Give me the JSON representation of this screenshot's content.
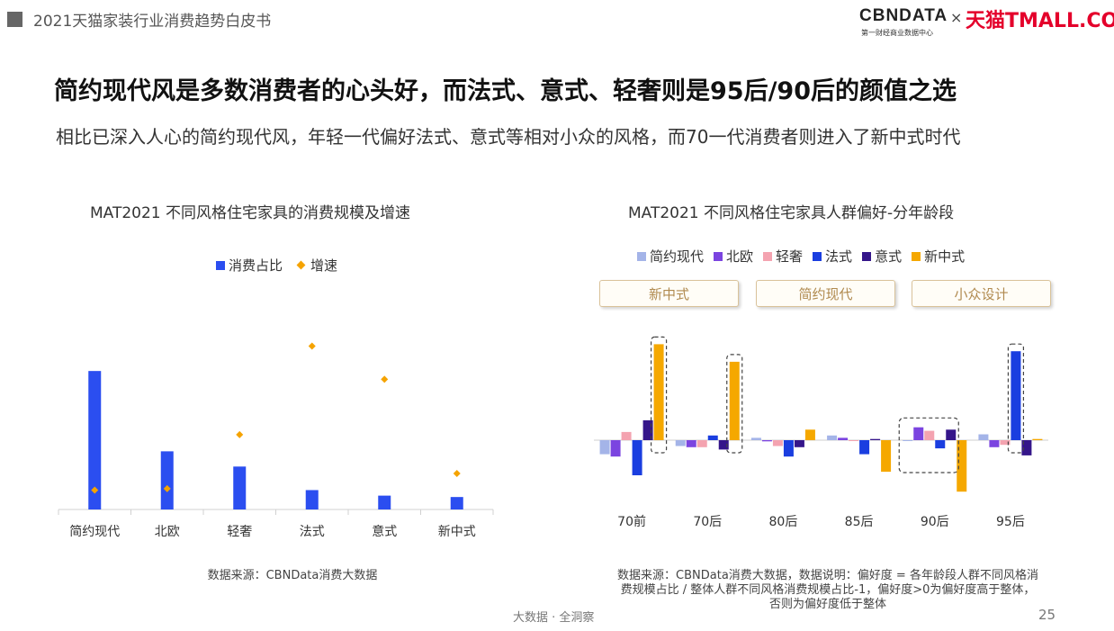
{
  "header": {
    "report_title": "2021天猫家装行业消费趋势白皮书",
    "cbn_logo": "CBNDATA",
    "cbn_tagline": "第一财经商业数据中心",
    "times_sign": "×",
    "tmall_logo": "天猫TMALL.COM"
  },
  "headline": "简约现代风是多数消费者的心头好，而法式、意式、轻奢则是95后/90后的颜值之选",
  "subline": "相比已深入人心的简约现代风，年轻一代偏好法式、意式等相对小众的风格，而70一代消费者则进入了新中式时代",
  "footer": {
    "center": "大数据 · 全洞察",
    "page": "25"
  },
  "colors": {
    "bar_blue": "#2b4ef0",
    "diamond_orange": "#f5a300",
    "series": [
      "#a4b4e8",
      "#7b44e0",
      "#f4a3b0",
      "#1a3ee0",
      "#35168a",
      "#f5a800"
    ]
  },
  "chart_data": [
    {
      "type": "bar",
      "title": "MAT2021 不同风格住宅家具的消费规模及增速",
      "categories": [
        "简约现代",
        "北欧",
        "轻奢",
        "法式",
        "意式",
        "新中式"
      ],
      "series": [
        {
          "name": "消费占比",
          "values": [
            100,
            42,
            31,
            14,
            10,
            9
          ]
        },
        {
          "name": "增速",
          "values": [
            14,
            15,
            54,
            118,
            94,
            26
          ]
        }
      ],
      "ylim": [
        0,
        130
      ],
      "legend_position": "top",
      "source": "数据来源：CBNData消费大数据"
    },
    {
      "type": "bar",
      "title": "MAT2021 不同风格住宅家具人群偏好-分年龄段",
      "categories": [
        "70前",
        "70后",
        "80后",
        "85后",
        "90后",
        "95后"
      ],
      "series": [
        {
          "name": "简约现代",
          "values": [
            -0.12,
            -0.05,
            0.02,
            0.04,
            0.0,
            0.05
          ]
        },
        {
          "name": "北欧",
          "values": [
            -0.14,
            -0.06,
            -0.01,
            0.02,
            0.11,
            -0.06
          ]
        },
        {
          "name": "轻奢",
          "values": [
            0.07,
            -0.06,
            -0.05,
            0.0,
            0.08,
            -0.04
          ]
        },
        {
          "name": "法式",
          "values": [
            -0.3,
            0.04,
            -0.14,
            -0.12,
            -0.07,
            0.76
          ]
        },
        {
          "name": "意式",
          "values": [
            0.17,
            -0.08,
            -0.06,
            0.01,
            0.09,
            -0.13
          ]
        },
        {
          "name": "新中式",
          "values": [
            0.82,
            0.67,
            0.09,
            -0.27,
            -0.44,
            0.01
          ]
        }
      ],
      "ylim": [
        -0.5,
        0.9
      ],
      "legend_position": "top",
      "highlight_tags": [
        "新中式",
        "简约现代",
        "小众设计"
      ],
      "source_lines": [
        "数据来源：CBNData消费大数据，数据说明：偏好度 = 各年龄段人群不同风格消",
        "费规模占比 / 整体人群不同风格消费规模占比-1，偏好度>0为偏好度高于整体，",
        "否则为偏好度低于整体"
      ]
    }
  ]
}
